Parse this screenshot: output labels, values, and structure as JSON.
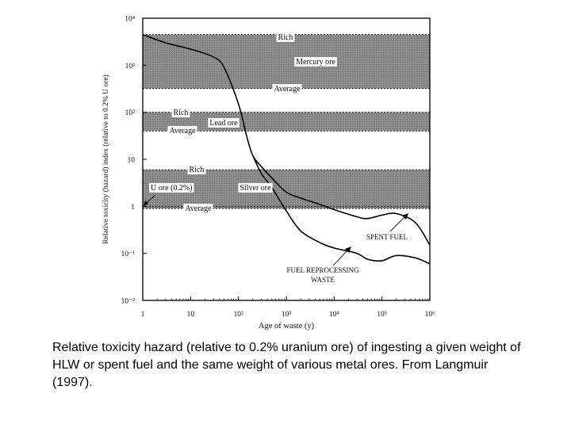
{
  "chart_data": {
    "type": "line",
    "xlabel": "Age of waste (y)",
    "ylabel": "Relative toxicity (hazard) index (relative to 0.2% U ore)",
    "x_scale": "log",
    "y_scale": "log",
    "xlim": [
      1,
      1000000
    ],
    "ylim": [
      0.01,
      10000
    ],
    "x_ticks": [
      {
        "value": 1,
        "label": "1"
      },
      {
        "value": 10,
        "label": "10"
      },
      {
        "value": 100,
        "label": "10²"
      },
      {
        "value": 1000,
        "label": "10³"
      },
      {
        "value": 10000,
        "label": "10⁴"
      },
      {
        "value": 100000,
        "label": "10⁵"
      },
      {
        "value": 1000000,
        "label": "10⁶"
      }
    ],
    "y_ticks": [
      {
        "value": 0.01,
        "label": "10⁻²"
      },
      {
        "value": 0.1,
        "label": "10⁻¹"
      },
      {
        "value": 1,
        "label": "1"
      },
      {
        "value": 10,
        "label": "10"
      },
      {
        "value": 100,
        "label": "10²"
      },
      {
        "value": 1000,
        "label": "10³"
      },
      {
        "value": 10000,
        "label": "10⁴"
      }
    ],
    "bands": [
      {
        "name": "Mercury ore",
        "rich": 4500,
        "average": 320,
        "rich_label": "Rich",
        "average_label": "Average"
      },
      {
        "name": "Lead ore",
        "rich": 100,
        "average": 40,
        "rich_label": "Rich",
        "average_label": "Average"
      },
      {
        "name": "Silver ore",
        "rich": 6,
        "average": 0.9,
        "rich_label": "Rich",
        "average_label": "Average"
      }
    ],
    "reference": {
      "name": "U ore (0.2%)",
      "value": 1
    },
    "series": [
      {
        "name": "Spent fuel",
        "label": "SPENT FUEL",
        "x": [
          1,
          3,
          10,
          30,
          50,
          100,
          150,
          200,
          300,
          500,
          1000,
          2000,
          5000,
          10000,
          30000,
          50000,
          100000,
          200000,
          500000,
          1000000
        ],
        "y": [
          4500,
          3000,
          2200,
          1500,
          900,
          150,
          30,
          12,
          7,
          4,
          2,
          1.5,
          1.1,
          0.85,
          0.6,
          0.55,
          0.65,
          0.7,
          0.45,
          0.15
        ]
      },
      {
        "name": "Fuel reprocessing waste",
        "label_line1": "FUEL REPROCESSING",
        "label_line2": "WASTE",
        "x": [
          200,
          300,
          500,
          1000,
          2000,
          5000,
          10000,
          30000,
          50000,
          100000,
          200000,
          500000,
          1000000
        ],
        "y": [
          12,
          5,
          2.5,
          0.8,
          0.3,
          0.17,
          0.13,
          0.1,
          0.075,
          0.07,
          0.09,
          0.08,
          0.06
        ]
      }
    ]
  },
  "caption": "Relative toxicity hazard (relative to 0.2% uranium ore) of ingesting a given weight of HLW or spent fuel and the same weight of various metal ores. From Langmuir (1997)."
}
